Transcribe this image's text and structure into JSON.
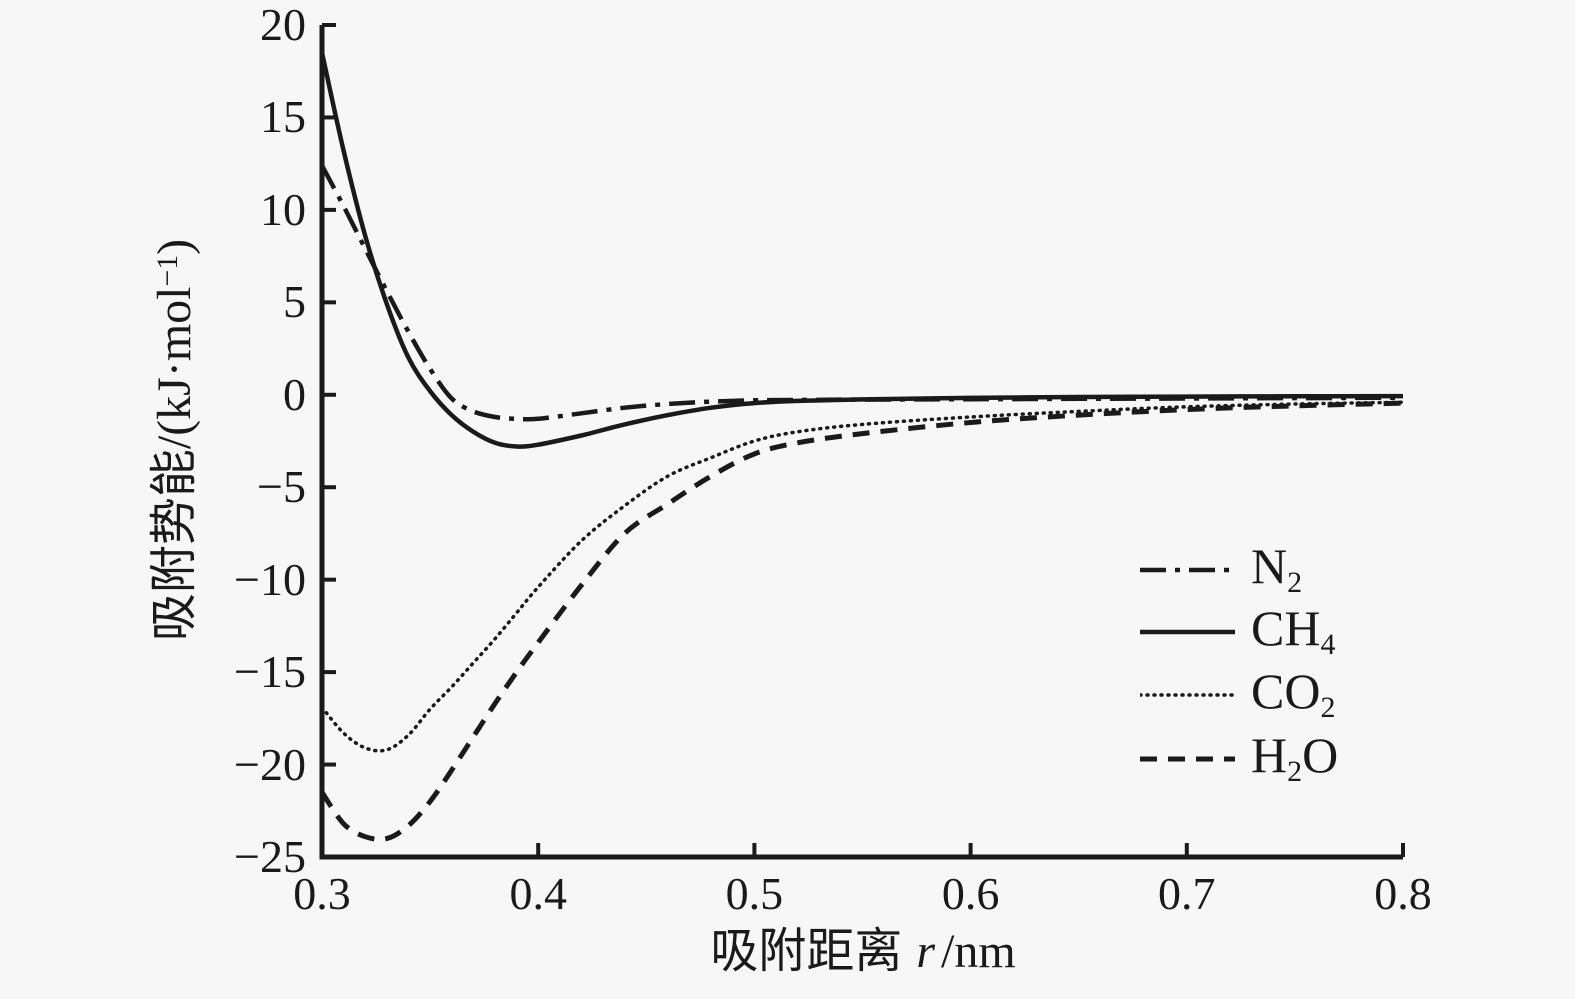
{
  "figure": {
    "background_color": "#f7f7f7",
    "ink_color": "#1a1a1a"
  },
  "chart_data": {
    "type": "line",
    "title": "",
    "xlabel": "吸附距离 r/nm",
    "ylabel": "吸附势能/(kJ·mol⁻¹)",
    "xlabel_parts": {
      "cjk": "吸附距离",
      "var": "r",
      "unit": "/nm"
    },
    "ylabel_parts": {
      "prefix": "吸附势能/(kJ·mol",
      "sup": "−1",
      "suffix": ")"
    },
    "x_range": [
      0.3,
      0.8
    ],
    "y_range": [
      -25,
      20
    ],
    "x_ticks": [
      0.3,
      0.4,
      0.5,
      0.6,
      0.7,
      0.8
    ],
    "x_tick_labels": [
      "0.3",
      "0.4",
      "0.5",
      "0.6",
      "0.7",
      "0.8"
    ],
    "y_ticks": [
      20,
      15,
      10,
      5,
      0,
      -5,
      -10,
      -15,
      -20,
      -25
    ],
    "y_tick_labels": [
      "20",
      "15",
      "10",
      "5",
      "0",
      "−5",
      "−10",
      "−15",
      "−20",
      "−25"
    ],
    "grid": false,
    "legend_position": "right-middle",
    "x": [
      0.3,
      0.31,
      0.32,
      0.33,
      0.34,
      0.35,
      0.36,
      0.37,
      0.38,
      0.39,
      0.4,
      0.42,
      0.44,
      0.46,
      0.48,
      0.5,
      0.52,
      0.55,
      0.6,
      0.65,
      0.7,
      0.75,
      0.8
    ],
    "series": [
      {
        "name": "N2",
        "legend_label": "N₂",
        "label_parts": {
          "pre": "N",
          "sub": "2",
          "post": ""
        },
        "line_style": "dashdot",
        "values": [
          12.4,
          10.2,
          7.9,
          5.6,
          3.4,
          1.4,
          -0.2,
          -0.9,
          -1.2,
          -1.3,
          -1.3,
          -1.0,
          -0.7,
          -0.5,
          -0.37,
          -0.3,
          -0.28,
          -0.26,
          -0.24,
          -0.22,
          -0.2,
          -0.18,
          -0.16
        ]
      },
      {
        "name": "CH4",
        "legend_label": "CH₄",
        "label_parts": {
          "pre": "CH",
          "sub": "4",
          "post": ""
        },
        "line_style": "solid",
        "values": [
          18.5,
          13.2,
          8.6,
          4.9,
          2.0,
          0.2,
          -1.1,
          -2.0,
          -2.6,
          -2.8,
          -2.7,
          -2.2,
          -1.6,
          -1.1,
          -0.7,
          -0.45,
          -0.33,
          -0.25,
          -0.17,
          -0.12,
          -0.1,
          -0.08,
          -0.07
        ]
      },
      {
        "name": "CO2",
        "legend_label": "CO₂",
        "label_parts": {
          "pre": "CO",
          "sub": "2",
          "post": ""
        },
        "line_style": "dotted",
        "values": [
          -16.9,
          -18.3,
          -19.1,
          -19.2,
          -18.4,
          -17.0,
          -15.8,
          -14.5,
          -13.2,
          -11.8,
          -10.4,
          -7.9,
          -6.0,
          -4.4,
          -3.4,
          -2.5,
          -2.0,
          -1.6,
          -1.2,
          -0.9,
          -0.65,
          -0.5,
          -0.4
        ]
      },
      {
        "name": "H2O",
        "legend_label": "H₂O",
        "label_parts": {
          "pre": "H",
          "sub": "2",
          "post": "O"
        },
        "line_style": "dashed",
        "values": [
          -21.5,
          -23.2,
          -23.9,
          -24.0,
          -23.3,
          -22.0,
          -20.3,
          -18.5,
          -16.7,
          -15.0,
          -13.4,
          -10.3,
          -7.5,
          -5.9,
          -4.4,
          -3.2,
          -2.6,
          -2.1,
          -1.5,
          -1.1,
          -0.8,
          -0.6,
          -0.45
        ]
      }
    ]
  }
}
